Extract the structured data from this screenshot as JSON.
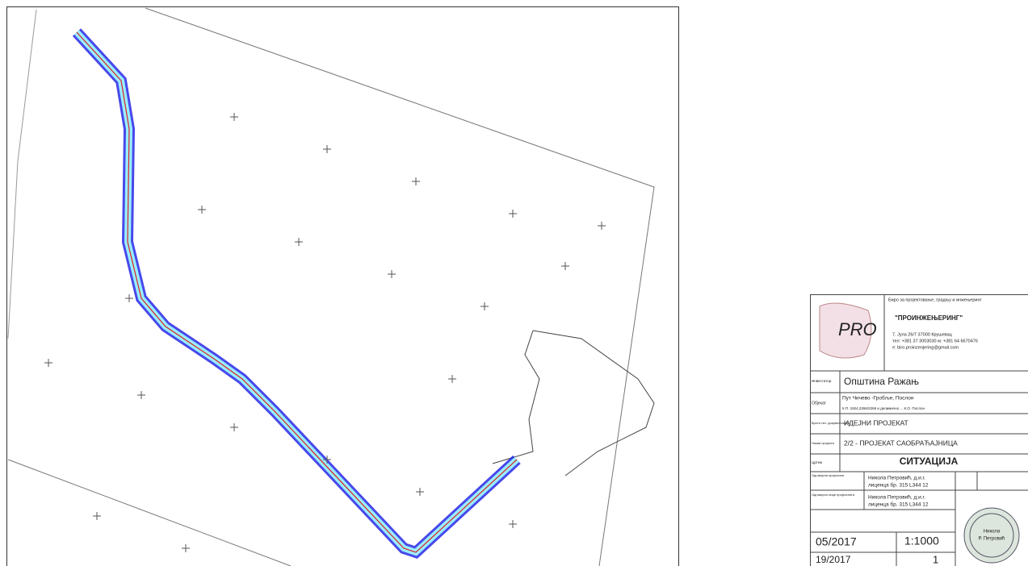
{
  "title_block": {
    "company": {
      "subtitle": "Биро за пројектовање, градњу и инжењеринг",
      "name": "\"ПРОИНЖЕЊЕРИНГ\"",
      "address": "7. Јула 26/7 37000 Крушевац",
      "phone": "тел: +381 37 3003030  м: +381 64 6670476",
      "email": "e: biro.proinzenjering@gmail.com",
      "logo_text": "PRO"
    },
    "investor": {
      "label": "Инвеститор",
      "value": "Општина Ражањ"
    },
    "object": {
      "label": "Објекат",
      "lines": [
        "Пут Чичево -Гробље, Послон",
        "К.П. 1924,2266/2266 и делимично ... К.О. Послон"
      ]
    },
    "doc_type": {
      "label": "Врста тех. документације",
      "value": "ИДЕЈНИ ПРОЈЕКАТ"
    },
    "project": {
      "label": "Назив пројекта",
      "value": "2/2 - ПРОЈЕКАТ САОБРАЋАЈНИЦА"
    },
    "drawing": {
      "label": "Цртеж",
      "value": "СИТУАЦИЈА"
    },
    "designers": [
      {
        "label": "Одговорни пројектант",
        "name": "Никола Петровић, д.и.г.",
        "license": "лиценца бр. 315 L344 12"
      },
      {
        "label": "Одговорно лице пројектанта",
        "name": "Никола Петровић, д.и.г.",
        "license": "лиценца бр. 315 L344 12"
      }
    ],
    "date": "05/2017",
    "scale": "1:1000",
    "number": "19/2017",
    "sheet": "1",
    "stamp": [
      "Никола",
      "Р. Петровић"
    ]
  }
}
